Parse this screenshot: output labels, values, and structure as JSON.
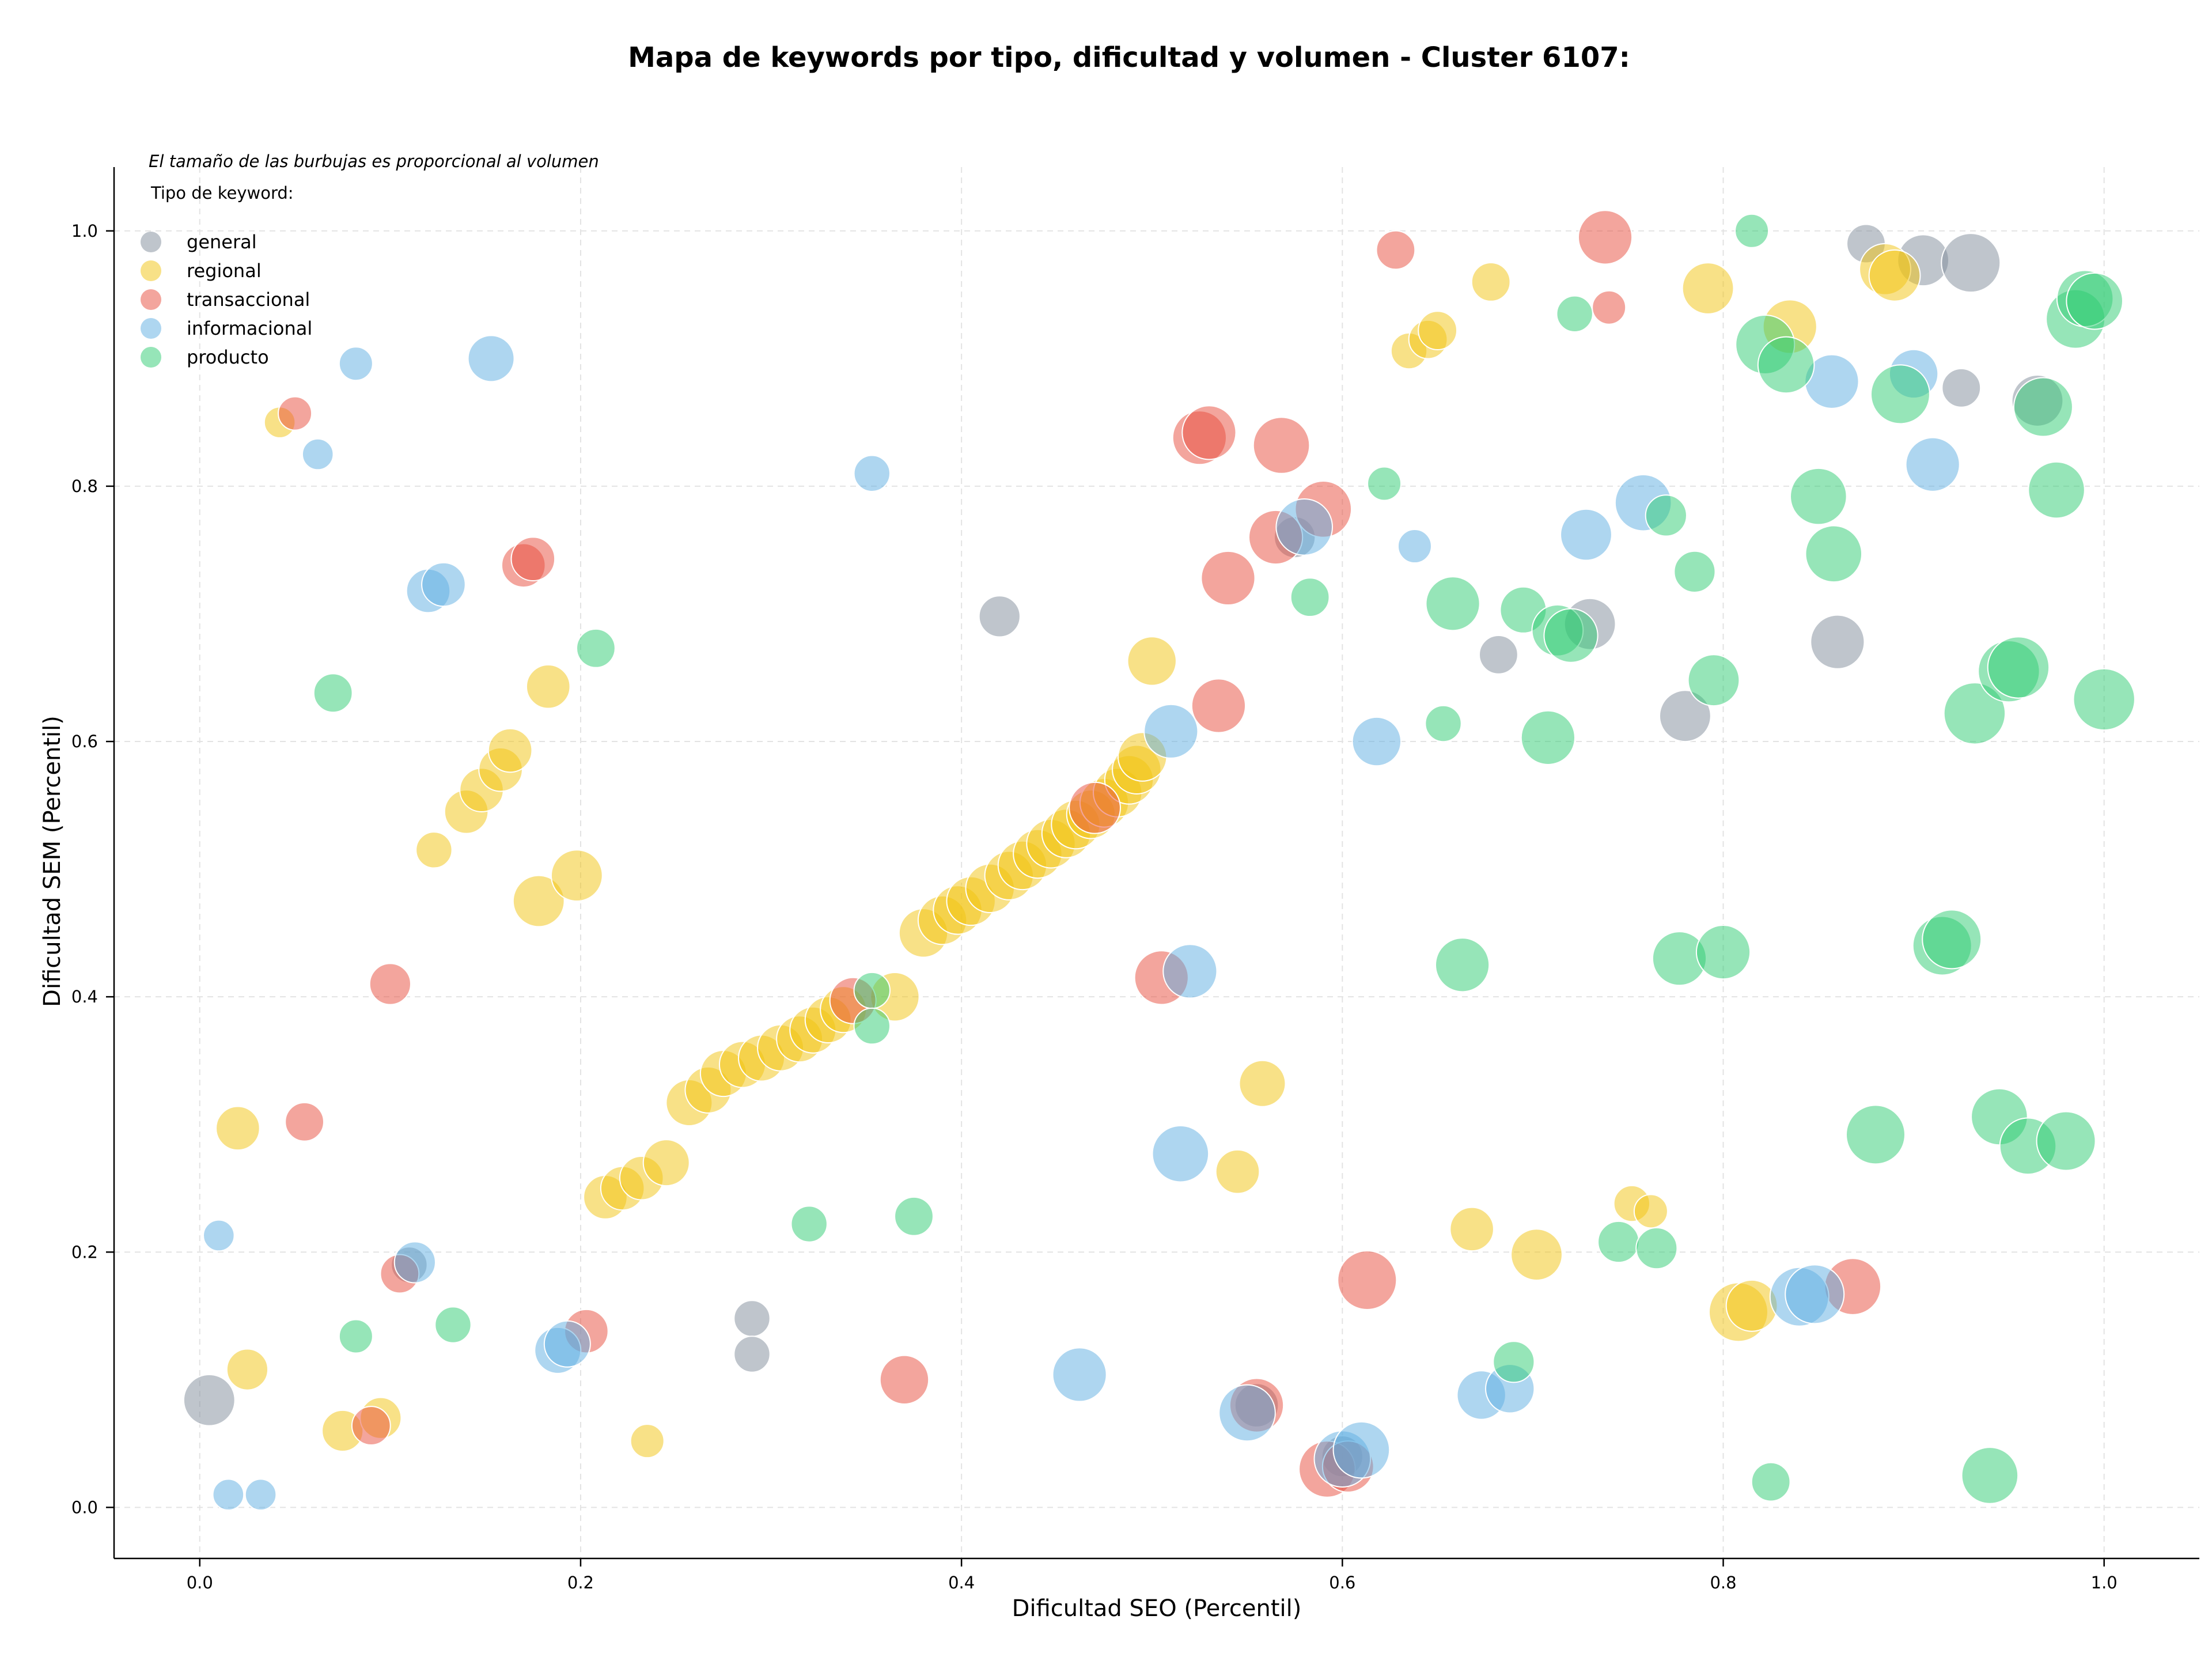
{
  "chart_data": {
    "type": "scatter",
    "title": "Mapa de keywords por tipo, dificultad y volumen - Cluster 6107:",
    "xlabel": "Dificultad SEO (Percentil)",
    "ylabel": "Dificultad SEM (Percentil)",
    "note": "El tamaño de las burbujas es proporcional al volumen",
    "legend_title": "Tipo de keyword:",
    "legend_position": "top-left",
    "grid": true,
    "xlim": [
      -0.045,
      1.05
    ],
    "ylim": [
      -0.04,
      1.05
    ],
    "x_ticks": [
      0.0,
      0.2,
      0.4,
      0.6,
      0.8,
      1.0
    ],
    "x_tick_labels": [
      "0.0",
      "0.2",
      "0.4",
      "0.6",
      "0.8",
      "1.0"
    ],
    "y_ticks": [
      0.0,
      0.2,
      0.4,
      0.6,
      0.8,
      1.0
    ],
    "y_tick_labels": [
      "0.0",
      "0.2",
      "0.4",
      "0.6",
      "0.8",
      "1.0"
    ],
    "size_range": [
      18,
      62
    ],
    "series": [
      {
        "name": "general",
        "color": "#7f8c9a",
        "points": [
          [
            0.005,
            0.084,
            0.6
          ],
          [
            0.29,
            0.148,
            0.3
          ],
          [
            0.29,
            0.12,
            0.3
          ],
          [
            0.42,
            0.698,
            0.4
          ],
          [
            0.682,
            0.668,
            0.35
          ],
          [
            0.73,
            0.692,
            0.6
          ],
          [
            0.78,
            0.62,
            0.6
          ],
          [
            0.86,
            0.678,
            0.65
          ],
          [
            0.875,
            0.99,
            0.35
          ],
          [
            0.905,
            0.977,
            0.6
          ],
          [
            0.93,
            0.975,
            0.75
          ],
          [
            0.925,
            0.877,
            0.35
          ],
          [
            0.965,
            0.867,
            0.6
          ],
          [
            0.6,
            0.04,
            0.4
          ],
          [
            0.555,
            0.08,
            0.45
          ],
          [
            0.11,
            0.19,
            0.3
          ],
          [
            0.575,
            0.76,
            0.4
          ]
        ]
      },
      {
        "name": "regional",
        "color": "#f1c40f",
        "points": [
          [
            0.042,
            0.85,
            0.2
          ],
          [
            0.02,
            0.297,
            0.45
          ],
          [
            0.025,
            0.108,
            0.4
          ],
          [
            0.075,
            0.06,
            0.4
          ],
          [
            0.095,
            0.07,
            0.4
          ],
          [
            0.123,
            0.515,
            0.3
          ],
          [
            0.14,
            0.545,
            0.45
          ],
          [
            0.148,
            0.562,
            0.45
          ],
          [
            0.158,
            0.578,
            0.45
          ],
          [
            0.163,
            0.593,
            0.45
          ],
          [
            0.183,
            0.643,
            0.45
          ],
          [
            0.178,
            0.475,
            0.6
          ],
          [
            0.198,
            0.495,
            0.6
          ],
          [
            0.213,
            0.243,
            0.45
          ],
          [
            0.222,
            0.25,
            0.45
          ],
          [
            0.232,
            0.258,
            0.45
          ],
          [
            0.245,
            0.27,
            0.5
          ],
          [
            0.235,
            0.052,
            0.25
          ],
          [
            0.257,
            0.317,
            0.5
          ],
          [
            0.267,
            0.327,
            0.5
          ],
          [
            0.275,
            0.34,
            0.5
          ],
          [
            0.285,
            0.347,
            0.5
          ],
          [
            0.295,
            0.352,
            0.5
          ],
          [
            0.305,
            0.36,
            0.5
          ],
          [
            0.315,
            0.367,
            0.5
          ],
          [
            0.322,
            0.374,
            0.5
          ],
          [
            0.33,
            0.382,
            0.5
          ],
          [
            0.338,
            0.39,
            0.5
          ],
          [
            0.365,
            0.4,
            0.55
          ],
          [
            0.38,
            0.45,
            0.55
          ],
          [
            0.39,
            0.46,
            0.55
          ],
          [
            0.398,
            0.468,
            0.55
          ],
          [
            0.405,
            0.475,
            0.55
          ],
          [
            0.415,
            0.485,
            0.55
          ],
          [
            0.425,
            0.495,
            0.55
          ],
          [
            0.432,
            0.503,
            0.55
          ],
          [
            0.44,
            0.512,
            0.55
          ],
          [
            0.447,
            0.52,
            0.55
          ],
          [
            0.455,
            0.528,
            0.55
          ],
          [
            0.46,
            0.535,
            0.55
          ],
          [
            0.468,
            0.543,
            0.55
          ],
          [
            0.475,
            0.552,
            0.55
          ],
          [
            0.482,
            0.56,
            0.55
          ],
          [
            0.488,
            0.57,
            0.55
          ],
          [
            0.492,
            0.578,
            0.55
          ],
          [
            0.495,
            0.588,
            0.55
          ],
          [
            0.5,
            0.663,
            0.55
          ],
          [
            0.545,
            0.263,
            0.45
          ],
          [
            0.558,
            0.332,
            0.5
          ],
          [
            0.635,
            0.906,
            0.3
          ],
          [
            0.645,
            0.915,
            0.35
          ],
          [
            0.65,
            0.922,
            0.35
          ],
          [
            0.678,
            0.96,
            0.35
          ],
          [
            0.668,
            0.218,
            0.45
          ],
          [
            0.702,
            0.198,
            0.6
          ],
          [
            0.752,
            0.238,
            0.3
          ],
          [
            0.762,
            0.232,
            0.25
          ],
          [
            0.792,
            0.955,
            0.6
          ],
          [
            0.835,
            0.925,
            0.65
          ],
          [
            0.808,
            0.153,
            0.75
          ],
          [
            0.815,
            0.158,
            0.6
          ],
          [
            0.885,
            0.97,
            0.6
          ],
          [
            0.89,
            0.965,
            0.6
          ]
        ]
      },
      {
        "name": "transaccional",
        "color": "#e74c3c",
        "points": [
          [
            0.05,
            0.857,
            0.25
          ],
          [
            0.055,
            0.302,
            0.35
          ],
          [
            0.09,
            0.064,
            0.35
          ],
          [
            0.1,
            0.41,
            0.4
          ],
          [
            0.105,
            0.183,
            0.35
          ],
          [
            0.17,
            0.738,
            0.45
          ],
          [
            0.175,
            0.743,
            0.45
          ],
          [
            0.203,
            0.138,
            0.45
          ],
          [
            0.343,
            0.397,
            0.5
          ],
          [
            0.37,
            0.1,
            0.55
          ],
          [
            0.47,
            0.548,
            0.6
          ],
          [
            0.505,
            0.415,
            0.65
          ],
          [
            0.525,
            0.838,
            0.65
          ],
          [
            0.53,
            0.842,
            0.65
          ],
          [
            0.535,
            0.628,
            0.65
          ],
          [
            0.54,
            0.728,
            0.65
          ],
          [
            0.555,
            0.08,
            0.65
          ],
          [
            0.565,
            0.76,
            0.65
          ],
          [
            0.568,
            0.832,
            0.7
          ],
          [
            0.59,
            0.782,
            0.7
          ],
          [
            0.592,
            0.03,
            0.7
          ],
          [
            0.603,
            0.032,
            0.6
          ],
          [
            0.613,
            0.178,
            0.75
          ],
          [
            0.628,
            0.985,
            0.35
          ],
          [
            0.738,
            0.995,
            0.65
          ],
          [
            0.74,
            0.94,
            0.25
          ],
          [
            0.868,
            0.173,
            0.7
          ]
        ]
      },
      {
        "name": "informacional",
        "color": "#5dade2",
        "points": [
          [
            0.01,
            0.213,
            0.2
          ],
          [
            0.015,
            0.01,
            0.2
          ],
          [
            0.032,
            0.01,
            0.2
          ],
          [
            0.062,
            0.825,
            0.2
          ],
          [
            0.082,
            0.896,
            0.25
          ],
          [
            0.113,
            0.192,
            0.4
          ],
          [
            0.12,
            0.718,
            0.45
          ],
          [
            0.128,
            0.723,
            0.45
          ],
          [
            0.153,
            0.9,
            0.5
          ],
          [
            0.188,
            0.123,
            0.5
          ],
          [
            0.193,
            0.128,
            0.5
          ],
          [
            0.353,
            0.81,
            0.3
          ],
          [
            0.462,
            0.104,
            0.65
          ],
          [
            0.51,
            0.608,
            0.65
          ],
          [
            0.515,
            0.277,
            0.7
          ],
          [
            0.52,
            0.42,
            0.65
          ],
          [
            0.55,
            0.074,
            0.7
          ],
          [
            0.58,
            0.768,
            0.7
          ],
          [
            0.6,
            0.038,
            0.7
          ],
          [
            0.61,
            0.045,
            0.7
          ],
          [
            0.618,
            0.6,
            0.55
          ],
          [
            0.638,
            0.753,
            0.25
          ],
          [
            0.673,
            0.088,
            0.55
          ],
          [
            0.688,
            0.093,
            0.55
          ],
          [
            0.728,
            0.762,
            0.6
          ],
          [
            0.758,
            0.787,
            0.7
          ],
          [
            0.84,
            0.165,
            0.75
          ],
          [
            0.848,
            0.167,
            0.75
          ],
          [
            0.857,
            0.882,
            0.65
          ],
          [
            0.9,
            0.888,
            0.55
          ],
          [
            0.91,
            0.817,
            0.65
          ]
        ]
      },
      {
        "name": "producto",
        "color": "#2ecc71",
        "points": [
          [
            0.07,
            0.638,
            0.35
          ],
          [
            0.082,
            0.134,
            0.25
          ],
          [
            0.133,
            0.143,
            0.3
          ],
          [
            0.208,
            0.673,
            0.35
          ],
          [
            0.32,
            0.222,
            0.3
          ],
          [
            0.353,
            0.405,
            0.3
          ],
          [
            0.353,
            0.377,
            0.3
          ],
          [
            0.375,
            0.228,
            0.35
          ],
          [
            0.583,
            0.713,
            0.35
          ],
          [
            0.622,
            0.802,
            0.25
          ],
          [
            0.653,
            0.614,
            0.3
          ],
          [
            0.658,
            0.708,
            0.65
          ],
          [
            0.663,
            0.425,
            0.65
          ],
          [
            0.69,
            0.114,
            0.4
          ],
          [
            0.695,
            0.703,
            0.5
          ],
          [
            0.708,
            0.603,
            0.65
          ],
          [
            0.713,
            0.687,
            0.6
          ],
          [
            0.72,
            0.683,
            0.65
          ],
          [
            0.722,
            0.935,
            0.3
          ],
          [
            0.745,
            0.208,
            0.4
          ],
          [
            0.765,
            0.203,
            0.4
          ],
          [
            0.77,
            0.777,
            0.4
          ],
          [
            0.777,
            0.43,
            0.65
          ],
          [
            0.785,
            0.733,
            0.4
          ],
          [
            0.795,
            0.648,
            0.6
          ],
          [
            0.8,
            0.435,
            0.65
          ],
          [
            0.815,
            1.0,
            0.25
          ],
          [
            0.822,
            0.911,
            0.75
          ],
          [
            0.825,
            0.02,
            0.35
          ],
          [
            0.833,
            0.895,
            0.7
          ],
          [
            0.85,
            0.792,
            0.7
          ],
          [
            0.858,
            0.747,
            0.7
          ],
          [
            0.88,
            0.292,
            0.75
          ],
          [
            0.893,
            0.872,
            0.75
          ],
          [
            0.915,
            0.44,
            0.75
          ],
          [
            0.92,
            0.445,
            0.75
          ],
          [
            0.932,
            0.622,
            0.8
          ],
          [
            0.94,
            0.025,
            0.7
          ],
          [
            0.945,
            0.306,
            0.7
          ],
          [
            0.95,
            0.655,
            0.8
          ],
          [
            0.955,
            0.658,
            0.8
          ],
          [
            0.96,
            0.283,
            0.7
          ],
          [
            0.968,
            0.862,
            0.75
          ],
          [
            0.975,
            0.797,
            0.7
          ],
          [
            0.98,
            0.287,
            0.75
          ],
          [
            0.985,
            0.931,
            0.75
          ],
          [
            0.99,
            0.947,
            0.7
          ],
          [
            0.995,
            0.945,
            0.7
          ],
          [
            1.0,
            0.633,
            0.8
          ]
        ]
      }
    ]
  }
}
